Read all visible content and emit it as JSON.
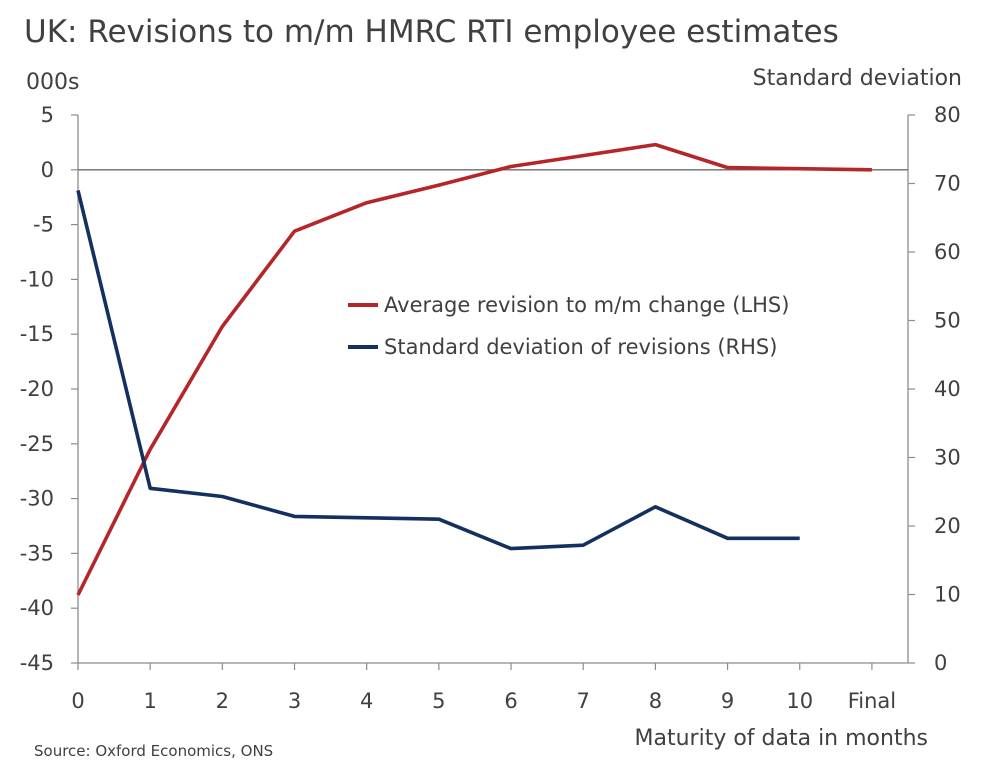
{
  "chart_data": {
    "type": "line",
    "title": "UK: Revisions to m/m HMRC RTI employee estimates",
    "ylabel_left": "000s",
    "ylabel_right": "Standard deviation",
    "xlabel": "Maturity of data in months",
    "source": "Source: Oxford Economics, ONS",
    "categories": [
      "0",
      "1",
      "2",
      "3",
      "4",
      "5",
      "6",
      "7",
      "8",
      "9",
      "10",
      "Final"
    ],
    "ylim_left": [
      -45,
      5
    ],
    "yticks_left": [
      "5",
      "0",
      "-5",
      "-10",
      "-15",
      "-20",
      "-25",
      "-30",
      "-35",
      "-40",
      "-45"
    ],
    "ylim_right": [
      0,
      80
    ],
    "yticks_right": [
      "80",
      "70",
      "60",
      "50",
      "40",
      "30",
      "20",
      "10",
      "0"
    ],
    "grid": false,
    "legend_position": "center",
    "series": [
      {
        "name": "Average revision to m/m change (LHS)",
        "axis": "left",
        "color": "#b5262b",
        "values": [
          -38.8,
          -25.5,
          -14.3,
          -5.6,
          -3.0,
          -1.4,
          0.3,
          1.3,
          2.3,
          0.2,
          0.1,
          0.0
        ]
      },
      {
        "name": "Standard deviation of revisions (RHS)",
        "axis": "right",
        "color": "#13305f",
        "values": [
          69.0,
          25.5,
          24.3,
          21.4,
          21.2,
          21.0,
          16.7,
          17.2,
          22.8,
          18.2,
          18.2,
          null
        ]
      }
    ]
  }
}
